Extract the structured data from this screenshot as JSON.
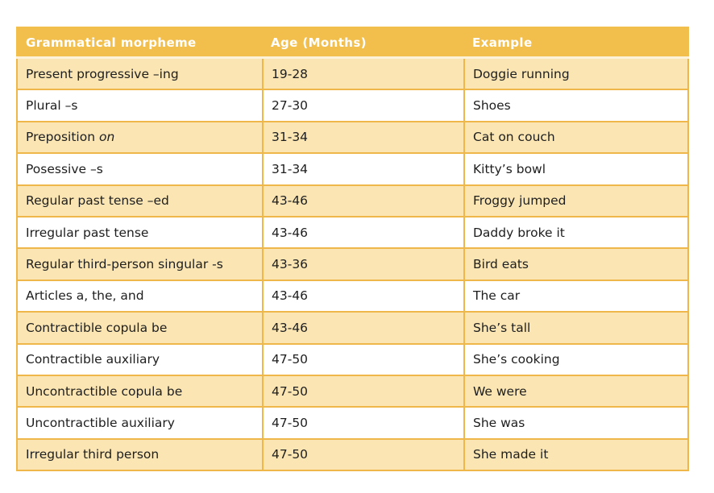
{
  "table": {
    "columns": [
      "Grammatical morpheme",
      "Age (Months)",
      "Example"
    ],
    "rows": [
      {
        "morpheme": "Present progressive –ing",
        "age": "19-28",
        "example": "Doggie running"
      },
      {
        "morpheme": "Plural –s",
        "age": "27-30",
        "example": "Shoes"
      },
      {
        "morpheme": "Preposition ",
        "morpheme_italic": "on",
        "age": "31-34",
        "example": "Cat on couch"
      },
      {
        "morpheme": "Posessive –s",
        "age": "31-34",
        "example": "Kitty’s bowl"
      },
      {
        "morpheme": "Regular past tense –ed",
        "age": "43-46",
        "example": "Froggy jumped"
      },
      {
        "morpheme": "Irregular past tense",
        "age": "43-46",
        "example": "Daddy broke it"
      },
      {
        "morpheme": "Regular third-person singular -s",
        "age": "43-36",
        "example": "Bird eats"
      },
      {
        "morpheme": "Articles a, the, and",
        "age": "43-46",
        "example": "The car"
      },
      {
        "morpheme": "Contractible copula be",
        "age": "43-46",
        "example": "She’s tall"
      },
      {
        "morpheme": "Contractible auxiliary",
        "age": "47-50",
        "example": "She’s cooking"
      },
      {
        "morpheme": "Uncontractible copula be",
        "age": "47-50",
        "example": "We were"
      },
      {
        "morpheme": "Uncontractible auxiliary",
        "age": "47-50",
        "example": "She was"
      },
      {
        "morpheme": "Irregular third person",
        "age": "47-50",
        "example": "She made it"
      }
    ],
    "colors": {
      "header_bg": "#F2BF4D",
      "header_text": "#FFFFFF",
      "band_bg": "#FAE5B3",
      "border_gold": "#EFB74A",
      "header_divider": "#FCF2D9",
      "body_text": "#1E1E1E"
    }
  }
}
